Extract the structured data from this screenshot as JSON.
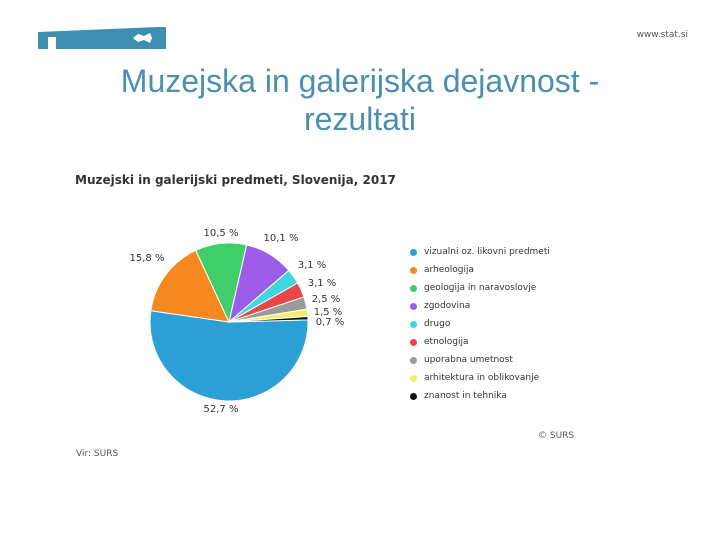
{
  "header": {
    "site": "www.stat.si"
  },
  "slide_title_line1": "Muzejska in galerijska dejavnost -",
  "slide_title_line2": "rezultati",
  "chart_data": {
    "type": "pie",
    "title": "Muzejski in galerijski predmeti, Slovenija, 2017",
    "slices": [
      {
        "name": "vizualni oz. likovni predmeti",
        "value": 52.7,
        "label": "52,7 %",
        "color": "#2b9fd6"
      },
      {
        "name": "arheologija",
        "value": 15.8,
        "label": "15,8 %",
        "color": "#f5891f"
      },
      {
        "name": "geologija in naravoslovje",
        "value": 10.5,
        "label": "10,5 %",
        "color": "#3fce6a"
      },
      {
        "name": "zgodovina",
        "value": 10.1,
        "label": "10,1 %",
        "color": "#9b5ce8"
      },
      {
        "name": "drugo",
        "value": 3.1,
        "label": "3,1 %",
        "color": "#3fd6e0"
      },
      {
        "name": "etnologija",
        "value": 3.1,
        "label": "3,1 %",
        "color": "#e8474a"
      },
      {
        "name": "uporabna umetnost",
        "value": 2.5,
        "label": "2,5 %",
        "color": "#9a9a9a"
      },
      {
        "name": "arhitektura in oblikovanje",
        "value": 1.5,
        "label": "1,5 %",
        "color": "#f2ef6e"
      },
      {
        "name": "znanost in tehnika",
        "value": 0.7,
        "label": "0,7 %",
        "color": "#111111"
      }
    ],
    "legend_position": "right"
  },
  "copyright": "© SURS",
  "source": "Vir: SURS"
}
